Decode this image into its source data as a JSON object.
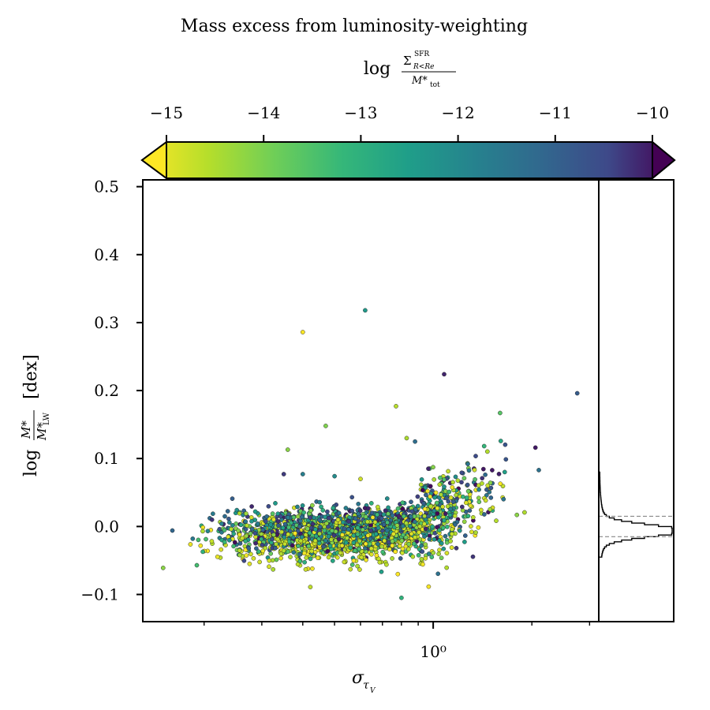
{
  "chart_data": {
    "type": "scatter",
    "title": "Mass excess from luminosity-weighting",
    "colorbar": {
      "label_main": "log",
      "label_num": "Σ",
      "label_num_sup": "SFR",
      "label_num_sub": "R<Re",
      "label_den": "M*",
      "label_den_sub": "tot",
      "range": [
        -15,
        -10
      ],
      "ticks": [
        -15,
        -14,
        -13,
        -12,
        -11,
        -10
      ],
      "tick_labels": [
        "−15",
        "−14",
        "−13",
        "−12",
        "−11",
        "−10"
      ],
      "colormap": "viridis",
      "reversed": true,
      "extend": "both"
    },
    "x_axis": {
      "label": "σ",
      "label_sub": "τ",
      "label_sub_sub": "V",
      "scale": "log",
      "range": [
        0.13,
        3.2
      ],
      "major_ticks": [
        1.0
      ],
      "major_tick_labels": [
        "10⁰"
      ],
      "minor_ticks": [
        0.2,
        0.3,
        0.4,
        0.5,
        0.6,
        0.7,
        0.8,
        0.9,
        2,
        3
      ]
    },
    "y_axis": {
      "label_log": "log",
      "label_num": "M*",
      "label_den": "M*",
      "label_den_sub": "LW",
      "label_unit": "[dex]",
      "range": [
        -0.14,
        0.51
      ],
      "ticks": [
        -0.1,
        0.0,
        0.1,
        0.2,
        0.3,
        0.4,
        0.5
      ],
      "tick_labels": [
        "−0.1",
        "0.0",
        "0.1",
        "0.2",
        "0.3",
        "0.4",
        "0.5"
      ]
    },
    "outlier_points": [
      {
        "x": 0.62,
        "y": 0.318,
        "c": -12.4
      },
      {
        "x": 0.4,
        "y": 0.286,
        "c": -15.0
      },
      {
        "x": 1.08,
        "y": 0.224,
        "c": -10.3
      },
      {
        "x": 2.75,
        "y": 0.196,
        "c": -11.0
      },
      {
        "x": 0.77,
        "y": 0.177,
        "c": -14.4
      },
      {
        "x": 1.6,
        "y": 0.167,
        "c": -13.5
      },
      {
        "x": 0.47,
        "y": 0.148,
        "c": -13.9
      },
      {
        "x": 0.83,
        "y": 0.13,
        "c": -14.3
      },
      {
        "x": 0.88,
        "y": 0.125,
        "c": -11.4
      },
      {
        "x": 0.36,
        "y": 0.113,
        "c": -14.0
      },
      {
        "x": 2.05,
        "y": 0.116,
        "c": -10.2
      },
      {
        "x": 2.1,
        "y": 0.083,
        "c": -11.5
      },
      {
        "x": 0.35,
        "y": 0.077,
        "c": -10.5
      },
      {
        "x": 0.4,
        "y": 0.077,
        "c": -11.8
      },
      {
        "x": 0.5,
        "y": 0.074,
        "c": -12.1
      },
      {
        "x": 0.6,
        "y": 0.07,
        "c": -14.6
      },
      {
        "x": 1.8,
        "y": 0.017,
        "c": -14.0
      },
      {
        "x": 0.8,
        "y": -0.105,
        "c": -13.0
      },
      {
        "x": 0.15,
        "y": -0.061,
        "c": -14.0
      },
      {
        "x": 0.19,
        "y": -0.057,
        "c": -13.3
      },
      {
        "x": 0.78,
        "y": -0.07,
        "c": -15.0
      }
    ],
    "bulk_cloud": {
      "n_points": 2400,
      "x_range": [
        0.14,
        1.9
      ],
      "trend": "y ≈ -0.01 near x=0.2–0.7, rising to ≈ +0.07 at x=1.5",
      "scatter_dex": 0.02
    },
    "marginal_histogram": {
      "orientation": "horizontal",
      "peak_y": -0.005,
      "percentile_lines_y": [
        0.015,
        -0.015
      ],
      "percentile_line_style": "dashed grey"
    }
  }
}
